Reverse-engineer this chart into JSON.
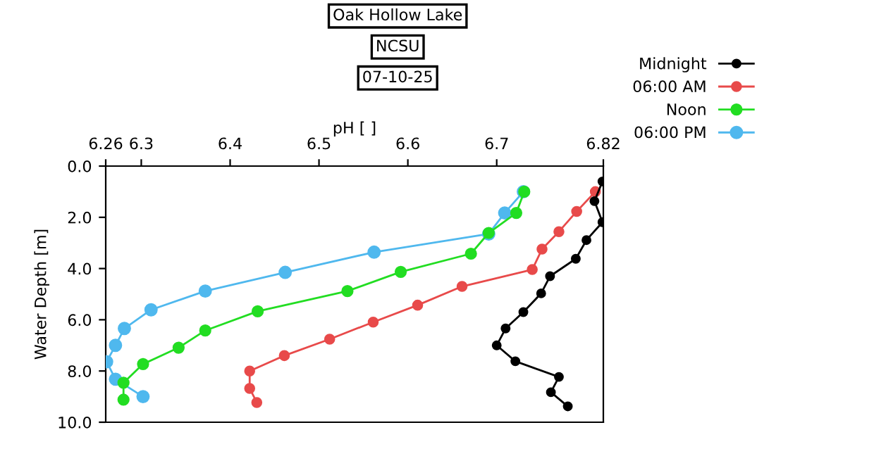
{
  "chart_data": {
    "type": "line",
    "title": "Oak Hollow Lake",
    "subtitle": "NCSU",
    "annotations": [
      "07-10-25"
    ],
    "xlabel": "pH [ ]",
    "ylabel": "Water Depth [m]",
    "xlim": [
      6.26,
      6.82
    ],
    "xticks": [
      6.26,
      6.3,
      6.4,
      6.5,
      6.6,
      6.7,
      6.82
    ],
    "ylim": [
      10.0,
      0.0
    ],
    "yticks": [
      {
        "value": 0,
        "label": "0.0"
      },
      {
        "value": 2,
        "label": "2.0"
      },
      {
        "value": 4,
        "label": "4.0"
      },
      {
        "value": 6,
        "label": "6.0"
      },
      {
        "value": 8,
        "label": "8.0"
      },
      {
        "value": 10,
        "label": "10.0"
      }
    ],
    "grid": false,
    "legend": "top right",
    "marker": "circle",
    "line_style": "solid",
    "series": [
      {
        "name": "Midnight",
        "color": "#000000",
        "x": [
          6.819,
          6.81,
          6.819,
          6.801,
          6.789,
          6.76,
          6.75,
          6.73,
          6.71,
          6.7,
          6.721,
          6.77,
          6.761,
          6.78
        ],
        "values": [
          0.6,
          1.37,
          2.19,
          2.89,
          3.62,
          4.3,
          4.97,
          5.7,
          6.34,
          7.0,
          7.62,
          8.23,
          8.83,
          9.38
        ]
      },
      {
        "name": "06:00 AM",
        "color": "#e84a4a",
        "x": [
          6.811,
          6.79,
          6.77,
          6.751,
          6.74,
          6.661,
          6.611,
          6.561,
          6.512,
          6.461,
          6.422,
          6.422,
          6.43
        ],
        "values": [
          1.0,
          1.77,
          2.56,
          3.24,
          4.04,
          4.7,
          5.43,
          6.09,
          6.76,
          7.4,
          8.0,
          8.68,
          9.23
        ]
      },
      {
        "name": "Noon",
        "color": "#22dd22",
        "x": [
          6.731,
          6.722,
          6.691,
          6.671,
          6.592,
          6.532,
          6.431,
          6.372,
          6.342,
          6.302,
          6.28,
          6.28
        ],
        "values": [
          1.0,
          1.83,
          2.61,
          3.42,
          4.13,
          4.88,
          5.67,
          6.42,
          7.09,
          7.73,
          8.46,
          9.12
        ]
      },
      {
        "name": "06:00 PM",
        "color": "#4fb8ee",
        "x": [
          6.73,
          6.709,
          6.691,
          6.562,
          6.462,
          6.372,
          6.311,
          6.281,
          6.271,
          6.261,
          6.271,
          6.302
        ],
        "values": [
          1.0,
          1.83,
          2.65,
          3.36,
          4.15,
          4.88,
          5.61,
          6.34,
          7.0,
          7.64,
          8.32,
          9.0
        ]
      }
    ]
  }
}
